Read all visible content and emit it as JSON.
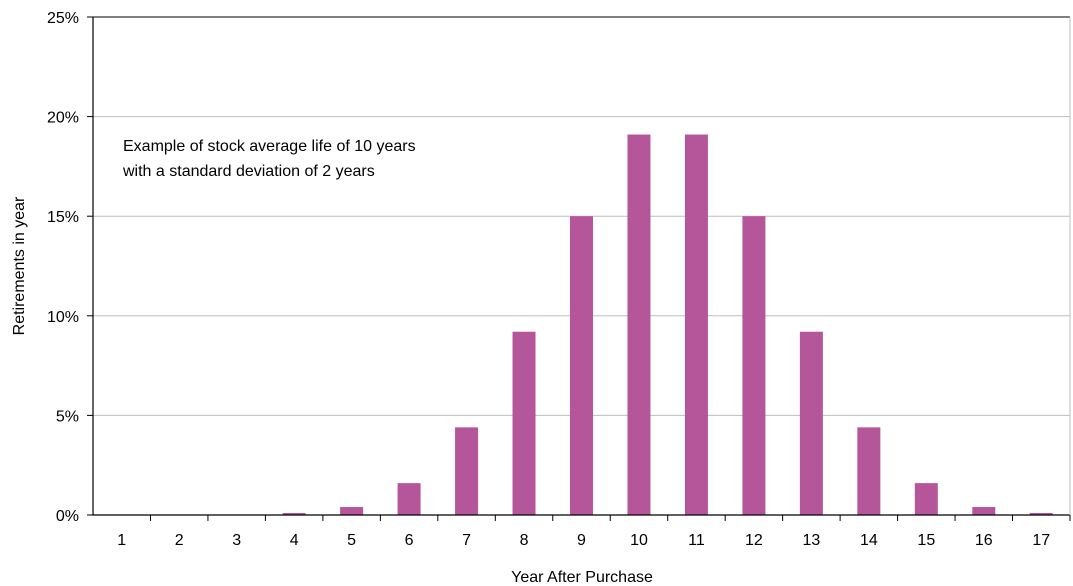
{
  "chart_data": {
    "type": "bar",
    "categories": [
      "1",
      "2",
      "3",
      "4",
      "5",
      "6",
      "7",
      "8",
      "9",
      "10",
      "11",
      "12",
      "13",
      "14",
      "15",
      "16",
      "17"
    ],
    "values": [
      0.0,
      0.0,
      0.0,
      0.1,
      0.4,
      1.6,
      4.4,
      9.2,
      15.0,
      19.1,
      19.1,
      15.0,
      9.2,
      4.4,
      1.6,
      0.4,
      0.1
    ],
    "xlabel": "Year After Purchase",
    "ylabel": "Retirements in year",
    "ylim": [
      0,
      25
    ],
    "yticks": [
      "0%",
      "5%",
      "10%",
      "15%",
      "20%",
      "25%"
    ],
    "grid": true,
    "bar_color": "#b5569a",
    "annotation": {
      "line1": "Example of stock average life of 10 years",
      "line2": "with a standard deviation of 2 years"
    }
  }
}
